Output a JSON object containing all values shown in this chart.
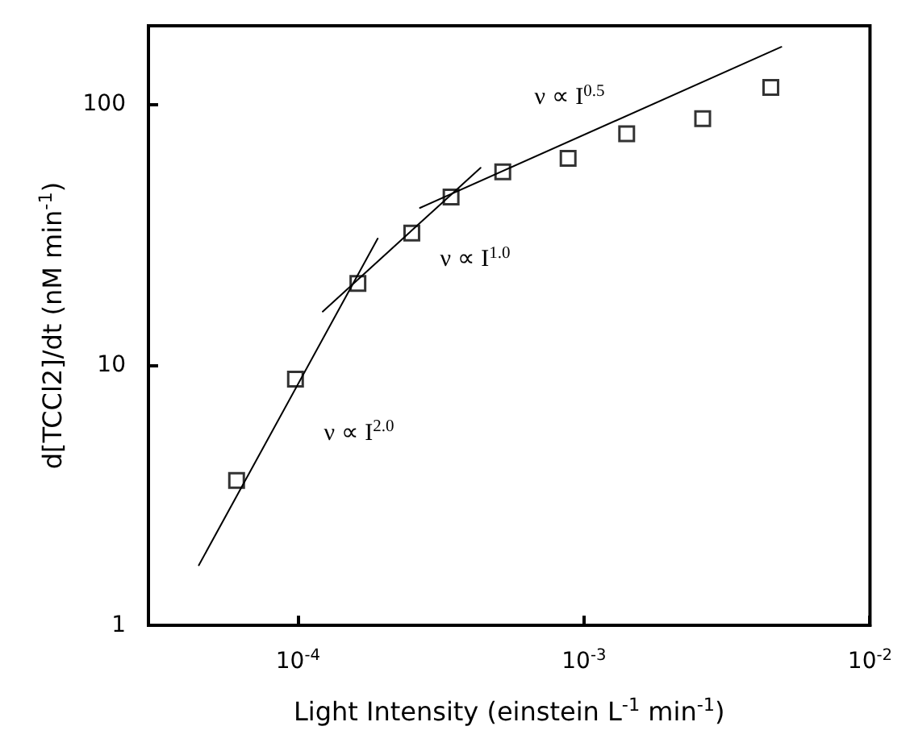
{
  "chart_data": {
    "type": "scatter",
    "xlabel": "Light Intensity (einstein L$^{-1}$ min$^{-1}$)",
    "ylabel": "d[TCCl2]/dt (nM min$^{-1}$)",
    "log": "xy",
    "xlim": [
      3e-05,
      0.01
    ],
    "ylim": [
      1,
      200
    ],
    "xticks": [
      {
        "value": 0.0001,
        "label": "10$^{-4}$"
      },
      {
        "value": 0.001,
        "label": "10$^{-3}$"
      },
      {
        "value": 0.01,
        "label": "10$^{-2}$"
      }
    ],
    "yticks": [
      1,
      10,
      100
    ],
    "marker": "square",
    "series": [
      {
        "color": "#000000",
        "x": [
          6.1e-05,
          9.8e-05,
          0.000162,
          0.00025,
          0.000343,
          0.00052,
          0.00088,
          0.00141,
          0.0026,
          0.0045
        ],
        "values": [
          3.6,
          8.8,
          20.5,
          32,
          44,
          55,
          62,
          77,
          88,
          116
        ]
      },
      {
        "type": "line",
        "color": "#000000",
        "line_style": "solid",
        "marker": "none",
        "x": [
          4.5e-05,
          0.00019
        ],
        "values": [
          1.7,
          30.5
        ]
      },
      {
        "type": "line",
        "color": "#000000",
        "line_style": "solid",
        "marker": "none",
        "x": [
          0.000122,
          0.000435
        ],
        "values": [
          16,
          57
        ]
      },
      {
        "type": "line",
        "color": "#000000",
        "line_style": "solid",
        "marker": "none",
        "x": [
          0.000267,
          0.0049
        ],
        "values": [
          40,
          166
        ]
      }
    ],
    "annotations": [
      "ν ∝ I$^{0.5}$",
      "ν ∝ I$^{1.0}$",
      "ν ∝ I$^{2.0}$"
    ]
  }
}
